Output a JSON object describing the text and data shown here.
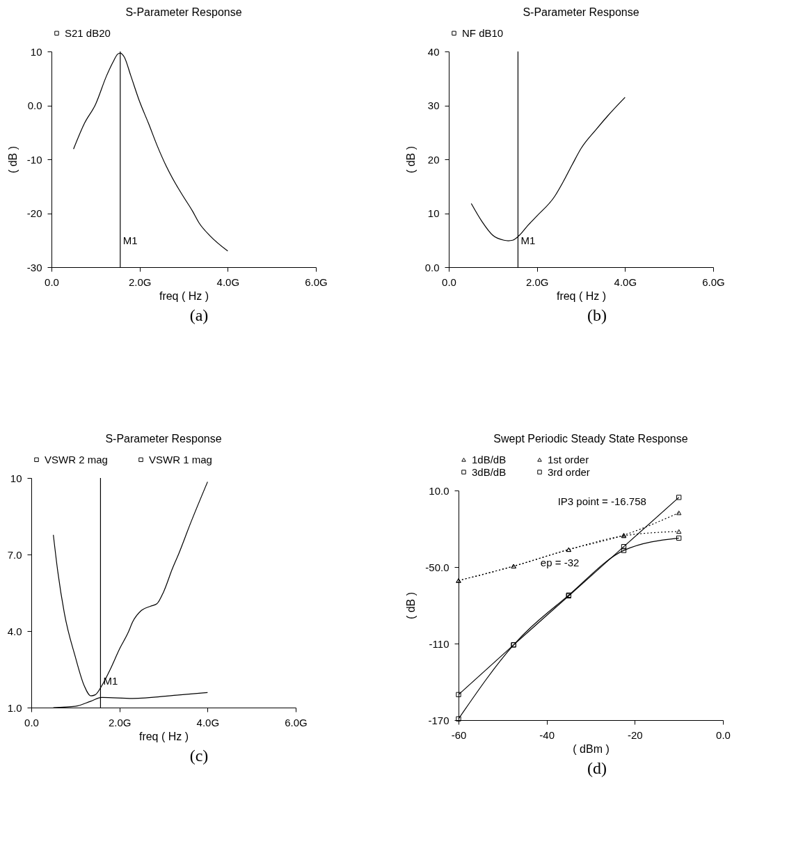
{
  "chart_data": [
    {
      "type": "line",
      "title": "S-Parameter Response",
      "xlabel": "freq ( Hz )",
      "ylabel": "( dB )",
      "legend": "top",
      "x": [
        0.5,
        0.75,
        1.0,
        1.25,
        1.4,
        1.5,
        1.56,
        1.65,
        1.8,
        2.0,
        2.2,
        2.4,
        2.6,
        2.8,
        3.0,
        3.2,
        3.35,
        3.6,
        4.0
      ],
      "series": [
        {
          "name": "S21 dB20",
          "color": "#000000",
          "values": [
            -8.1,
            -3.3,
            0.2,
            5.5,
            8.1,
            9.5,
            9.7,
            9.0,
            5.5,
            0.7,
            -3.3,
            -7.5,
            -11.2,
            -14.3,
            -17,
            -19.6,
            -21.8,
            -24.2,
            -27
          ]
        }
      ],
      "xlim": [
        0,
        6
      ],
      "xticks": [
        {
          "value": 0,
          "label": "0.0"
        },
        {
          "value": 2,
          "label": "2.0G"
        },
        {
          "value": 4,
          "label": "4.0G"
        },
        {
          "value": 6,
          "label": "6.0G"
        }
      ],
      "ylim": [
        -30,
        10
      ],
      "yticks": [
        -30,
        -20,
        -10,
        {
          "value": 0,
          "label": "0.0"
        },
        10
      ],
      "ref_lines": [
        {
          "axis": "x",
          "value": 1.56,
          "label": "M1"
        }
      ],
      "annotations": [
        "(a)"
      ]
    },
    {
      "type": "line",
      "title": "S-Parameter Response",
      "xlabel": "freq ( Hz )",
      "ylabel": "( dB )",
      "legend": "top",
      "x": [
        0.51,
        0.75,
        1.0,
        1.25,
        1.35,
        1.45,
        1.6,
        1.8,
        2.0,
        2.4,
        2.6,
        2.8,
        3.0,
        3.35,
        3.6,
        4.0
      ],
      "series": [
        {
          "name": "NF dB10",
          "color": "#000000",
          "values": [
            11.8,
            8.5,
            5.9,
            5.0,
            4.9,
            5.0,
            5.9,
            7.8,
            9.5,
            13.1,
            15.9,
            19.0,
            22.0,
            25.6,
            28.0,
            31.5
          ]
        }
      ],
      "xlim": [
        0,
        6
      ],
      "xticks": [
        {
          "value": 0,
          "label": "0.0"
        },
        {
          "value": 2,
          "label": "2.0G"
        },
        {
          "value": 4,
          "label": "4.0G"
        },
        {
          "value": 6,
          "label": "6.0G"
        }
      ],
      "ylim": [
        0,
        40
      ],
      "yticks": [
        {
          "value": 0,
          "label": "0.0"
        },
        10,
        20,
        30,
        40
      ],
      "ref_lines": [
        {
          "axis": "x",
          "value": 1.57,
          "label": "M1"
        }
      ],
      "annotations": [
        "(b)"
      ]
    },
    {
      "type": "line",
      "title": "S-Parameter Response",
      "xlabel": "freq ( Hz )",
      "legend": "top",
      "series": [
        {
          "name": "VSWR 2 mag",
          "color": "#000000",
          "x": [
            0.5,
            1.0,
            1.35,
            1.6,
            2.3,
            3.3,
            4.0
          ],
          "values": [
            1.0,
            1.05,
            1.25,
            1.4,
            1.36,
            1.49,
            1.59
          ]
        },
        {
          "name": "VSWR 1 mag",
          "color": "#000000",
          "x": [
            0.5,
            0.6,
            0.75,
            1.0,
            1.2,
            1.35,
            1.45,
            1.6,
            1.8,
            2.0,
            2.2,
            2.3,
            2.5,
            2.7,
            2.85,
            3.0,
            3.2,
            3.35,
            3.6,
            4.0
          ],
          "values": [
            7.77,
            6.34,
            4.7,
            2.98,
            1.86,
            1.46,
            1.5,
            1.86,
            2.53,
            3.29,
            3.95,
            4.36,
            4.81,
            4.97,
            5.07,
            5.53,
            6.44,
            7.05,
            8.17,
            9.85
          ]
        }
      ],
      "xlim": [
        0,
        6
      ],
      "xticks": [
        {
          "value": 0,
          "label": "0.0"
        },
        {
          "value": 2,
          "label": "2.0G"
        },
        {
          "value": 4,
          "label": "4.0G"
        },
        {
          "value": 6,
          "label": "6.0G"
        }
      ],
      "ylim": [
        1,
        10
      ],
      "yticks": [
        {
          "value": 1,
          "label": "1.0"
        },
        {
          "value": 4,
          "label": "4.0"
        },
        {
          "value": 7,
          "label": "7.0"
        },
        10
      ],
      "ref_lines": [
        {
          "axis": "x",
          "value": 1.57,
          "label": "M1"
        }
      ],
      "annotations": [
        "(c)"
      ]
    },
    {
      "type": "line",
      "title": "Swept Periodic Steady State Response",
      "xlabel": "( dBm )",
      "ylabel": "( dB )",
      "legend": "top",
      "x": [
        -60,
        -47.5,
        -35,
        -22.5,
        -10
      ],
      "series": [
        {
          "name": "1dB/dB",
          "color": "#000000",
          "line_style": "dotted",
          "marker": "triangle",
          "values": [
            -60.6,
            -49.3,
            -36.3,
            -25,
            -7.5
          ]
        },
        {
          "name": "1st order",
          "color": "#000000",
          "line_style": "dotted",
          "marker": "triangle",
          "values": [
            -60.6,
            -49.3,
            -36.3,
            -25.5,
            -22.1
          ]
        },
        {
          "name": "3dB/dB",
          "color": "#000000",
          "line_style": "solid",
          "marker": "square",
          "values": [
            -150,
            -111,
            -72.6,
            -34,
            4.6
          ]
        },
        {
          "name": "3rd order",
          "color": "#000000",
          "line_style": "solid",
          "marker": "square",
          "values": [
            -169,
            -111,
            -72,
            -37,
            -27.3
          ]
        }
      ],
      "xlim": [
        -60,
        0
      ],
      "xticks": [
        -60,
        -40,
        -20,
        {
          "value": 0,
          "label": "0.0"
        }
      ],
      "ylim": [
        -170,
        10
      ],
      "yticks": [
        -170,
        -110,
        {
          "value": -50,
          "label": "-50.0"
        },
        {
          "value": 10,
          "label": "10.0"
        }
      ],
      "annotations": [
        {
          "text": "IP3 point = -16.758",
          "x": -16.758,
          "y": -15
        },
        {
          "text": "ep = -32",
          "x": -32,
          "y": -63
        },
        "(d)"
      ]
    }
  ]
}
